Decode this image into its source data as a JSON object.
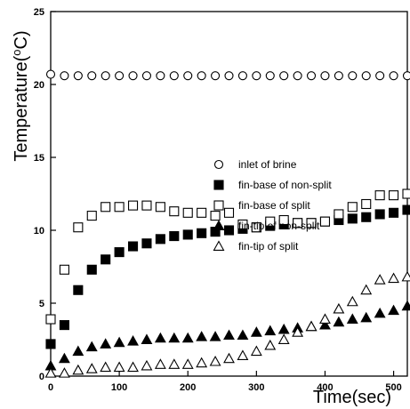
{
  "chart_data": {
    "type": "scatter",
    "title": "",
    "xlabel": "Time(sec)",
    "ylabel": "Temperature(°C)",
    "ylabel_parts": {
      "pre": "Temperature(",
      "sup": "o",
      "post": "C)"
    },
    "xlim": [
      0,
      520
    ],
    "ylim": [
      0,
      25
    ],
    "xticks": [
      0,
      100,
      200,
      300,
      400,
      500
    ],
    "yticks": [
      0,
      5,
      10,
      15,
      20,
      25
    ],
    "grid": false,
    "legend_position": "right-middle",
    "series": [
      {
        "name": "inlet of brine",
        "marker": "circle-open",
        "points": [
          [
            0,
            20.7
          ],
          [
            20,
            20.6
          ],
          [
            40,
            20.6
          ],
          [
            60,
            20.6
          ],
          [
            80,
            20.6
          ],
          [
            100,
            20.6
          ],
          [
            120,
            20.6
          ],
          [
            140,
            20.6
          ],
          [
            160,
            20.6
          ],
          [
            180,
            20.6
          ],
          [
            200,
            20.6
          ],
          [
            220,
            20.6
          ],
          [
            240,
            20.6
          ],
          [
            260,
            20.6
          ],
          [
            280,
            20.6
          ],
          [
            300,
            20.6
          ],
          [
            320,
            20.6
          ],
          [
            340,
            20.6
          ],
          [
            360,
            20.6
          ],
          [
            380,
            20.6
          ],
          [
            400,
            20.6
          ],
          [
            420,
            20.6
          ],
          [
            440,
            20.6
          ],
          [
            460,
            20.6
          ],
          [
            480,
            20.6
          ],
          [
            500,
            20.6
          ],
          [
            520,
            20.6
          ]
        ]
      },
      {
        "name": "fin-base of non-split",
        "marker": "square-filled",
        "points": [
          [
            0,
            2.2
          ],
          [
            20,
            3.5
          ],
          [
            40,
            5.9
          ],
          [
            60,
            7.3
          ],
          [
            80,
            8.0
          ],
          [
            100,
            8.5
          ],
          [
            120,
            8.9
          ],
          [
            140,
            9.1
          ],
          [
            160,
            9.4
          ],
          [
            180,
            9.6
          ],
          [
            200,
            9.7
          ],
          [
            220,
            9.8
          ],
          [
            240,
            9.9
          ],
          [
            260,
            10.0
          ],
          [
            280,
            10.1
          ],
          [
            300,
            10.2
          ],
          [
            320,
            10.3
          ],
          [
            340,
            10.4
          ],
          [
            360,
            10.5
          ],
          [
            380,
            10.5
          ],
          [
            400,
            10.6
          ],
          [
            420,
            10.7
          ],
          [
            440,
            10.8
          ],
          [
            460,
            10.9
          ],
          [
            480,
            11.1
          ],
          [
            500,
            11.2
          ],
          [
            520,
            11.4
          ]
        ]
      },
      {
        "name": "fin-base of split",
        "marker": "square-open",
        "points": [
          [
            0,
            3.9
          ],
          [
            20,
            7.3
          ],
          [
            40,
            10.2
          ],
          [
            60,
            11.0
          ],
          [
            80,
            11.6
          ],
          [
            100,
            11.6
          ],
          [
            120,
            11.7
          ],
          [
            140,
            11.7
          ],
          [
            160,
            11.6
          ],
          [
            180,
            11.3
          ],
          [
            200,
            11.2
          ],
          [
            220,
            11.2
          ],
          [
            240,
            11.0
          ],
          [
            260,
            11.2
          ],
          [
            280,
            10.4
          ],
          [
            300,
            10.2
          ],
          [
            320,
            10.6
          ],
          [
            340,
            10.7
          ],
          [
            360,
            10.5
          ],
          [
            380,
            10.5
          ],
          [
            400,
            10.6
          ],
          [
            420,
            11.1
          ],
          [
            440,
            11.6
          ],
          [
            460,
            11.8
          ],
          [
            480,
            12.4
          ],
          [
            500,
            12.4
          ],
          [
            520,
            12.5
          ]
        ]
      },
      {
        "name": "fin-tip of non-split",
        "marker": "triangle-filled",
        "points": [
          [
            0,
            0.7
          ],
          [
            20,
            1.2
          ],
          [
            40,
            1.7
          ],
          [
            60,
            2.0
          ],
          [
            80,
            2.2
          ],
          [
            100,
            2.3
          ],
          [
            120,
            2.4
          ],
          [
            140,
            2.5
          ],
          [
            160,
            2.6
          ],
          [
            180,
            2.6
          ],
          [
            200,
            2.6
          ],
          [
            220,
            2.7
          ],
          [
            240,
            2.7
          ],
          [
            260,
            2.8
          ],
          [
            280,
            2.8
          ],
          [
            300,
            3.0
          ],
          [
            320,
            3.1
          ],
          [
            340,
            3.2
          ],
          [
            360,
            3.3
          ],
          [
            380,
            3.4
          ],
          [
            400,
            3.5
          ],
          [
            420,
            3.7
          ],
          [
            440,
            3.9
          ],
          [
            460,
            4.0
          ],
          [
            480,
            4.3
          ],
          [
            500,
            4.5
          ],
          [
            520,
            4.8
          ]
        ]
      },
      {
        "name": "fin-tip of split",
        "marker": "triangle-open",
        "points": [
          [
            0,
            0.2
          ],
          [
            20,
            0.2
          ],
          [
            40,
            0.4
          ],
          [
            60,
            0.5
          ],
          [
            80,
            0.6
          ],
          [
            100,
            0.6
          ],
          [
            120,
            0.6
          ],
          [
            140,
            0.7
          ],
          [
            160,
            0.8
          ],
          [
            180,
            0.8
          ],
          [
            200,
            0.8
          ],
          [
            220,
            0.9
          ],
          [
            240,
            1.0
          ],
          [
            260,
            1.2
          ],
          [
            280,
            1.4
          ],
          [
            300,
            1.7
          ],
          [
            320,
            2.1
          ],
          [
            340,
            2.5
          ],
          [
            360,
            3.0
          ],
          [
            380,
            3.4
          ],
          [
            400,
            3.9
          ],
          [
            420,
            4.6
          ],
          [
            440,
            5.1
          ],
          [
            460,
            5.9
          ],
          [
            480,
            6.6
          ],
          [
            500,
            6.7
          ],
          [
            520,
            6.8
          ]
        ]
      }
    ]
  }
}
